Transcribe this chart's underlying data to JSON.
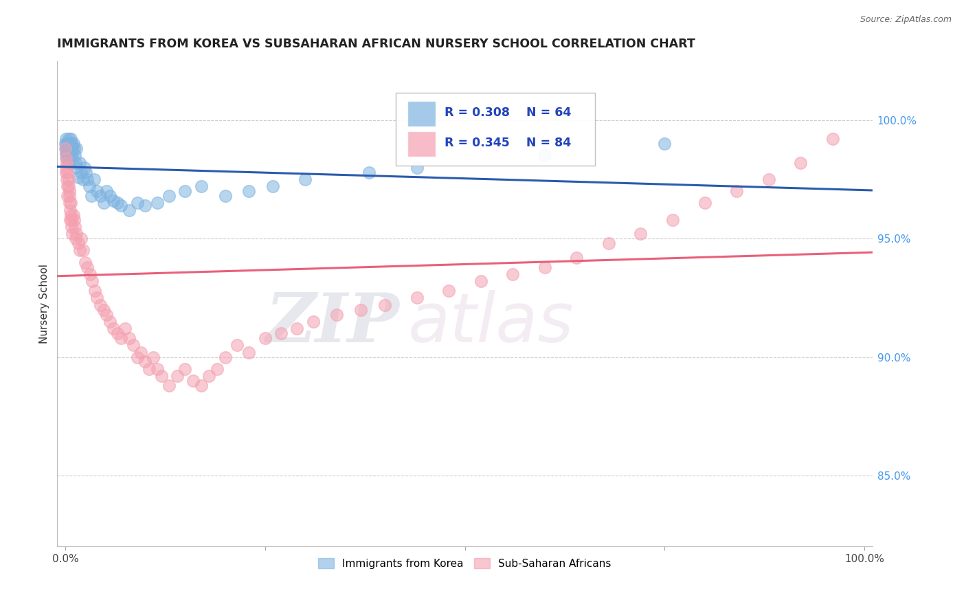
{
  "title": "IMMIGRANTS FROM KOREA VS SUBSAHARAN AFRICAN NURSERY SCHOOL CORRELATION CHART",
  "source": "Source: ZipAtlas.com",
  "ylabel": "Nursery School",
  "xlim": [
    -0.01,
    1.01
  ],
  "ylim": [
    0.82,
    1.025
  ],
  "y_ticks_right": [
    0.85,
    0.9,
    0.95,
    1.0
  ],
  "y_tick_labels_right": [
    "85.0%",
    "90.0%",
    "95.0%",
    "100.0%"
  ],
  "legend_R_korea": "R = 0.308",
  "legend_N_korea": "N = 64",
  "legend_R_africa": "R = 0.345",
  "legend_N_africa": "N = 84",
  "blue_color": "#7EB3E0",
  "pink_color": "#F4A0B0",
  "blue_line_color": "#2A5BAD",
  "pink_line_color": "#E8607A",
  "grid_color": "#CCCCCC",
  "watermark1": "ZIP",
  "watermark2": "atlas",
  "korea_x": [
    0.0,
    0.001,
    0.001,
    0.001,
    0.002,
    0.002,
    0.002,
    0.002,
    0.003,
    0.003,
    0.003,
    0.004,
    0.004,
    0.004,
    0.005,
    0.005,
    0.006,
    0.006,
    0.006,
    0.007,
    0.007,
    0.008,
    0.008,
    0.009,
    0.009,
    0.01,
    0.011,
    0.012,
    0.013,
    0.014,
    0.015,
    0.016,
    0.018,
    0.02,
    0.022,
    0.024,
    0.026,
    0.028,
    0.03,
    0.033,
    0.036,
    0.04,
    0.044,
    0.048,
    0.052,
    0.056,
    0.06,
    0.065,
    0.07,
    0.08,
    0.09,
    0.1,
    0.115,
    0.13,
    0.15,
    0.17,
    0.2,
    0.23,
    0.26,
    0.3,
    0.38,
    0.44,
    0.6,
    0.75
  ],
  "korea_y": [
    0.99,
    0.988,
    0.986,
    0.992,
    0.984,
    0.99,
    0.988,
    0.986,
    0.988,
    0.985,
    0.99,
    0.992,
    0.988,
    0.982,
    0.988,
    0.99,
    0.986,
    0.988,
    0.99,
    0.985,
    0.992,
    0.988,
    0.99,
    0.985,
    0.988,
    0.99,
    0.988,
    0.985,
    0.982,
    0.988,
    0.98,
    0.976,
    0.982,
    0.978,
    0.975,
    0.98,
    0.978,
    0.975,
    0.972,
    0.968,
    0.975,
    0.97,
    0.968,
    0.965,
    0.97,
    0.968,
    0.966,
    0.965,
    0.964,
    0.962,
    0.965,
    0.964,
    0.965,
    0.968,
    0.97,
    0.972,
    0.968,
    0.97,
    0.972,
    0.975,
    0.978,
    0.98,
    0.985,
    0.99
  ],
  "africa_x": [
    0.0,
    0.001,
    0.001,
    0.001,
    0.002,
    0.002,
    0.003,
    0.003,
    0.003,
    0.004,
    0.004,
    0.005,
    0.005,
    0.005,
    0.006,
    0.006,
    0.007,
    0.007,
    0.008,
    0.008,
    0.009,
    0.01,
    0.011,
    0.012,
    0.013,
    0.014,
    0.016,
    0.018,
    0.02,
    0.022,
    0.025,
    0.028,
    0.031,
    0.034,
    0.037,
    0.04,
    0.044,
    0.048,
    0.052,
    0.056,
    0.06,
    0.065,
    0.07,
    0.075,
    0.08,
    0.085,
    0.09,
    0.095,
    0.1,
    0.105,
    0.11,
    0.115,
    0.12,
    0.13,
    0.14,
    0.15,
    0.16,
    0.17,
    0.18,
    0.19,
    0.2,
    0.215,
    0.23,
    0.25,
    0.27,
    0.29,
    0.31,
    0.34,
    0.37,
    0.4,
    0.44,
    0.48,
    0.52,
    0.56,
    0.6,
    0.64,
    0.68,
    0.72,
    0.76,
    0.8,
    0.84,
    0.88,
    0.92,
    0.96
  ],
  "africa_y": [
    0.988,
    0.984,
    0.98,
    0.978,
    0.982,
    0.975,
    0.978,
    0.972,
    0.968,
    0.972,
    0.975,
    0.97,
    0.965,
    0.968,
    0.962,
    0.958,
    0.965,
    0.96,
    0.955,
    0.958,
    0.952,
    0.96,
    0.958,
    0.955,
    0.95,
    0.952,
    0.948,
    0.945,
    0.95,
    0.945,
    0.94,
    0.938,
    0.935,
    0.932,
    0.928,
    0.925,
    0.922,
    0.92,
    0.918,
    0.915,
    0.912,
    0.91,
    0.908,
    0.912,
    0.908,
    0.905,
    0.9,
    0.902,
    0.898,
    0.895,
    0.9,
    0.895,
    0.892,
    0.888,
    0.892,
    0.895,
    0.89,
    0.888,
    0.892,
    0.895,
    0.9,
    0.905,
    0.902,
    0.908,
    0.91,
    0.912,
    0.915,
    0.918,
    0.92,
    0.922,
    0.925,
    0.928,
    0.932,
    0.935,
    0.938,
    0.942,
    0.948,
    0.952,
    0.958,
    0.965,
    0.97,
    0.975,
    0.982,
    0.992
  ]
}
